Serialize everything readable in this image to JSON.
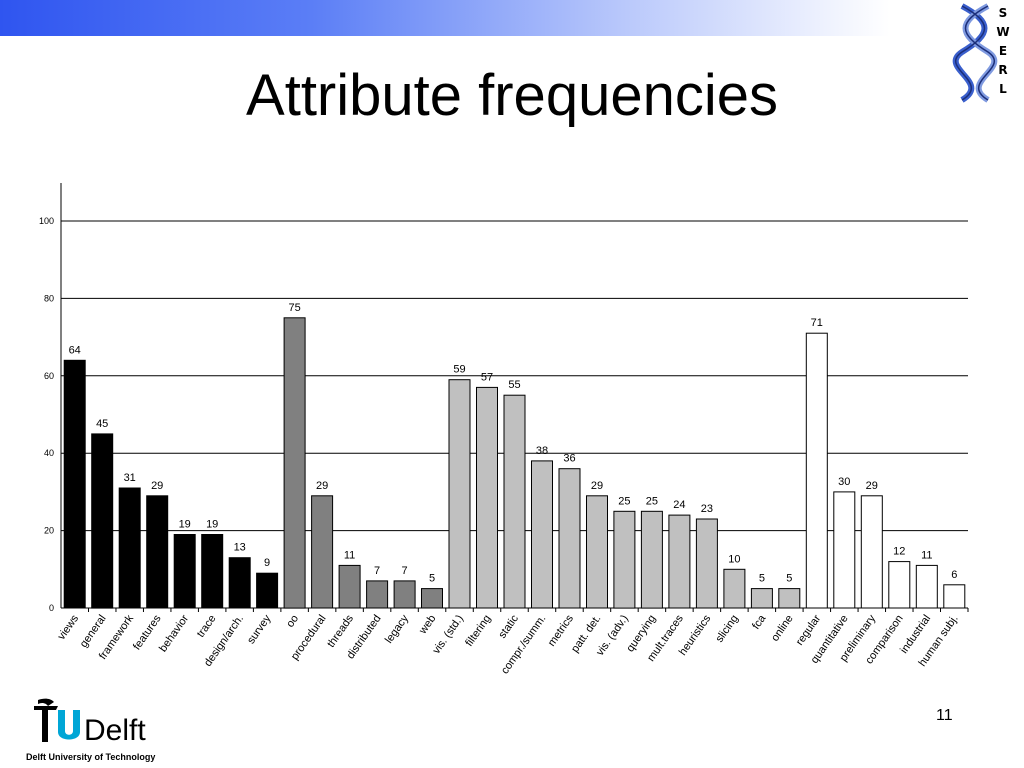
{
  "slide": {
    "title": "Attribute frequencies",
    "page_number": "11",
    "logo_text": "TUDelft",
    "logo_subtitle": "Delft University of Technology",
    "brand_letters": [
      "S",
      "W",
      "E",
      "R",
      "L"
    ]
  },
  "colors": {
    "band_blue": "#2f55f0",
    "group1": "#000000",
    "group2": "#808080",
    "group3": "#c0c0c0",
    "group4": "#ffffff",
    "logo_blue": "#00a6d6"
  },
  "chart_data": {
    "type": "bar",
    "title": "",
    "xlabel": "",
    "ylabel": "",
    "ylim": [
      0,
      110
    ],
    "yticks": [
      0,
      20,
      40,
      60,
      80,
      100
    ],
    "grid": true,
    "legend": "none",
    "categories": [
      "views",
      "general",
      "framework",
      "features",
      "behavior",
      "trace",
      "design/arch.",
      "survey",
      "oo",
      "procedural",
      "threads",
      "distributed",
      "legacy",
      "web",
      "vis. (std.)",
      "filtering",
      "static",
      "compr./summ.",
      "metrics",
      "patt. det.",
      "vis. (adv.)",
      "querying",
      "mult.traces",
      "heuristics",
      "slicing",
      "fca",
      "online",
      "regular",
      "quantitative",
      "preliminary",
      "comparison",
      "industrial",
      "human subj."
    ],
    "values": [
      64,
      45,
      31,
      29,
      19,
      19,
      13,
      9,
      75,
      29,
      11,
      7,
      7,
      5,
      59,
      57,
      55,
      38,
      36,
      29,
      25,
      25,
      24,
      23,
      10,
      5,
      5,
      71,
      30,
      29,
      12,
      11,
      6
    ],
    "groups": [
      1,
      1,
      1,
      1,
      1,
      1,
      1,
      1,
      2,
      2,
      2,
      2,
      2,
      2,
      3,
      3,
      3,
      3,
      3,
      3,
      3,
      3,
      3,
      3,
      3,
      3,
      3,
      4,
      4,
      4,
      4,
      4,
      4
    ]
  }
}
